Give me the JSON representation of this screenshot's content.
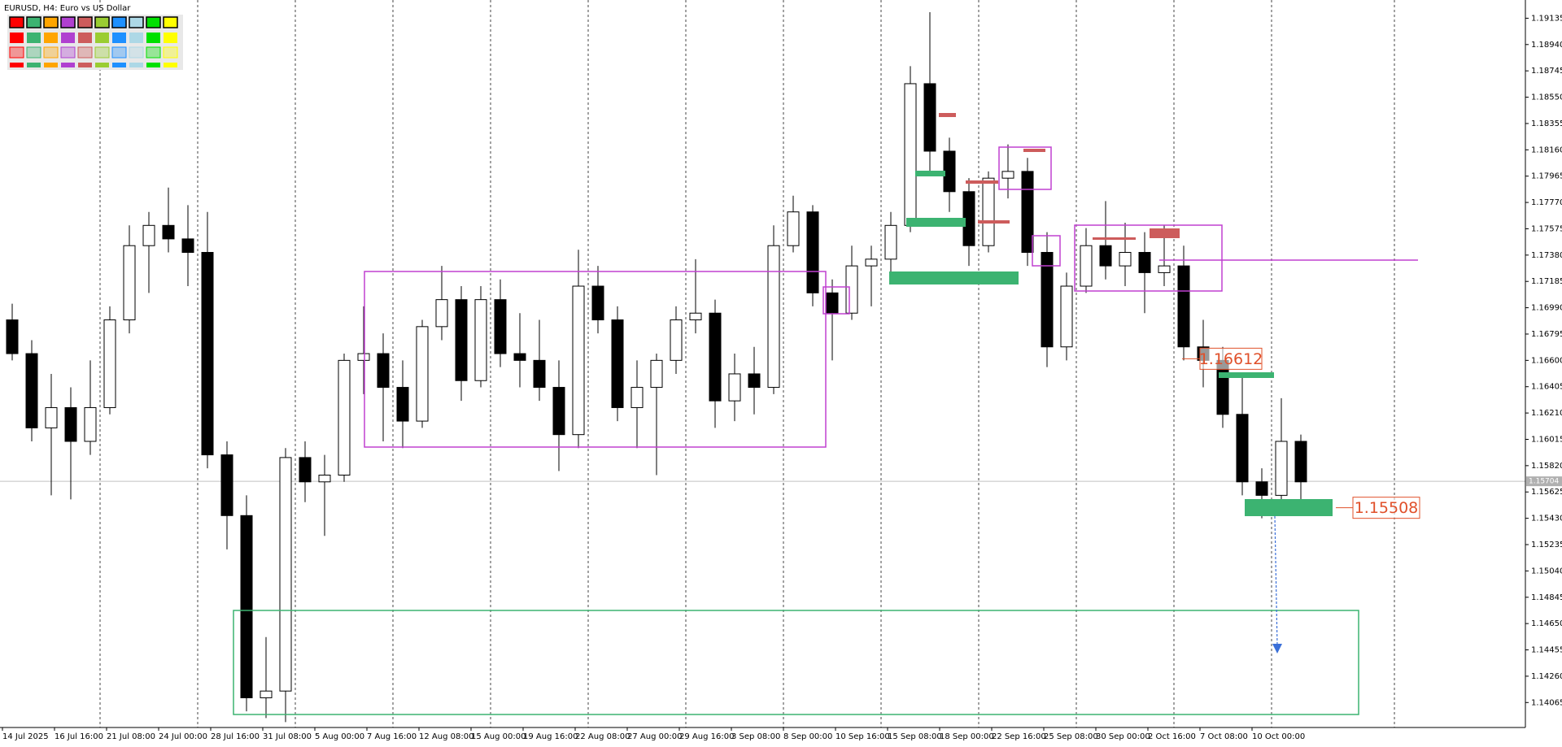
{
  "chart_data": {
    "type": "candlestick",
    "title": "EURUSD, H4:  Euro vs US Dollar",
    "open": [
      1.169,
      1.1665,
      1.161,
      1.1625,
      1.16,
      1.1625,
      1.169,
      1.1745,
      1.176,
      1.175,
      1.174,
      1.159,
      1.1545,
      1.141,
      1.1415,
      1.1588,
      1.157,
      1.1575,
      1.166,
      1.1665,
      1.164,
      1.1615,
      1.1685,
      1.1705,
      1.1645,
      1.1705,
      1.1665,
      1.166,
      1.164,
      1.1605,
      1.1715,
      1.169,
      1.1625,
      1.164,
      1.166,
      1.169,
      1.1695,
      1.163,
      1.165,
      1.164,
      1.1745,
      1.177,
      1.171,
      1.1695,
      1.173,
      1.1735,
      1.176,
      1.1865,
      1.1815,
      1.1785,
      1.1745,
      1.1795,
      1.18,
      1.174,
      1.167,
      1.1715,
      1.1745,
      1.173,
      1.174,
      1.1725,
      1.173,
      1.167,
      1.166,
      1.162,
      1.157,
      1.156,
      1.16
    ],
    "high": [
      1.1702,
      1.1675,
      1.165,
      1.164,
      1.166,
      1.17,
      1.176,
      1.177,
      1.1788,
      1.1775,
      1.177,
      1.16,
      1.156,
      1.1455,
      1.1595,
      1.16,
      1.159,
      1.1665,
      1.17,
      1.168,
      1.166,
      1.169,
      1.173,
      1.1715,
      1.1715,
      1.172,
      1.1695,
      1.169,
      1.166,
      1.1742,
      1.173,
      1.17,
      1.166,
      1.1665,
      1.17,
      1.1735,
      1.1705,
      1.1665,
      1.167,
      1.176,
      1.1782,
      1.1775,
      1.172,
      1.1745,
      1.1745,
      1.177,
      1.1878,
      1.1918,
      1.1825,
      1.1795,
      1.18,
      1.182,
      1.181,
      1.1755,
      1.1725,
      1.1758,
      1.1778,
      1.1762,
      1.1755,
      1.176,
      1.1745,
      1.169,
      1.167,
      1.165,
      1.158,
      1.1632,
      1.1605
    ],
    "low": [
      1.166,
      1.16,
      1.156,
      1.1557,
      1.159,
      1.162,
      1.168,
      1.171,
      1.174,
      1.1715,
      1.158,
      1.152,
      1.14,
      1.1395,
      1.1392,
      1.1555,
      1.153,
      1.157,
      1.1635,
      1.16,
      1.1595,
      1.161,
      1.1675,
      1.163,
      1.164,
      1.1655,
      1.164,
      1.163,
      1.1578,
      1.1595,
      1.168,
      1.1615,
      1.1595,
      1.1575,
      1.165,
      1.168,
      1.161,
      1.1615,
      1.162,
      1.1635,
      1.174,
      1.17,
      1.166,
      1.169,
      1.17,
      1.172,
      1.1755,
      1.18,
      1.177,
      1.173,
      1.174,
      1.178,
      1.173,
      1.1655,
      1.166,
      1.171,
      1.172,
      1.1715,
      1.1695,
      1.1715,
      1.166,
      1.164,
      1.161,
      1.156,
      1.1543,
      1.155,
      1.1553
    ],
    "close": [
      1.1665,
      1.161,
      1.1625,
      1.16,
      1.1625,
      1.169,
      1.1745,
      1.176,
      1.175,
      1.174,
      1.159,
      1.1545,
      1.141,
      1.1415,
      1.1588,
      1.157,
      1.1575,
      1.166,
      1.1665,
      1.164,
      1.1615,
      1.1685,
      1.1705,
      1.1645,
      1.1705,
      1.1665,
      1.166,
      1.164,
      1.1605,
      1.1715,
      1.169,
      1.1625,
      1.164,
      1.166,
      1.169,
      1.1695,
      1.163,
      1.165,
      1.164,
      1.1745,
      1.177,
      1.171,
      1.1695,
      1.173,
      1.1735,
      1.176,
      1.1865,
      1.1815,
      1.1785,
      1.1745,
      1.1795,
      1.18,
      1.174,
      1.167,
      1.1715,
      1.1745,
      1.173,
      1.174,
      1.1725,
      1.173,
      1.167,
      1.166,
      1.162,
      1.157,
      1.156,
      1.16,
      1.157
    ],
    "x_tick_labels": [
      "14 Jul 2025",
      "16 Jul 16:00",
      "21 Jul 08:00",
      "24 Jul 00:00",
      "28 Jul 16:00",
      "31 Jul 08:00",
      "5 Aug 00:00",
      "7 Aug 16:00",
      "12 Aug 08:00",
      "15 Aug 00:00",
      "19 Aug 16:00",
      "22 Aug 08:00",
      "27 Aug 00:00",
      "29 Aug 16:00",
      "3 Sep 08:00",
      "8 Sep 00:00",
      "10 Sep 16:00",
      "15 Sep 08:00",
      "18 Sep 00:00",
      "22 Sep 16:00",
      "25 Sep 08:00",
      "30 Sep 00:00",
      "2 Oct 16:00",
      "7 Oct 08:00",
      "10 Oct 00:00"
    ],
    "ylim": [
      1.1388,
      1.1927
    ],
    "yticks": [
      1.19135,
      {
        "value": 1.1894,
        "label": "1.18940"
      },
      1.18745,
      {
        "value": 1.1855,
        "label": "1.18550"
      },
      1.18355,
      {
        "value": 1.1816,
        "label": "1.18160"
      },
      1.17965,
      {
        "value": 1.1777,
        "label": "1.17770"
      },
      1.17575,
      {
        "value": 1.1738,
        "label": "1.17380"
      },
      1.17185,
      {
        "value": 1.1699,
        "label": "1.16990"
      },
      1.16795,
      {
        "value": 1.166,
        "label": "1.16600"
      },
      1.16405,
      {
        "value": 1.1621,
        "label": "1.16210"
      },
      1.16015,
      {
        "value": 1.1582,
        "label": "1.15820"
      },
      1.15625,
      {
        "value": 1.1543,
        "label": "1.15430"
      },
      1.15235,
      {
        "value": 1.1504,
        "label": "1.15040"
      },
      1.14845,
      {
        "value": 1.1465,
        "label": "1.14650"
      },
      1.14455,
      {
        "value": 1.1426,
        "label": "1.14260"
      },
      1.14065
    ],
    "last_price": 1.15704,
    "price_labels": [
      1.16612,
      1.15508
    ]
  }
}
